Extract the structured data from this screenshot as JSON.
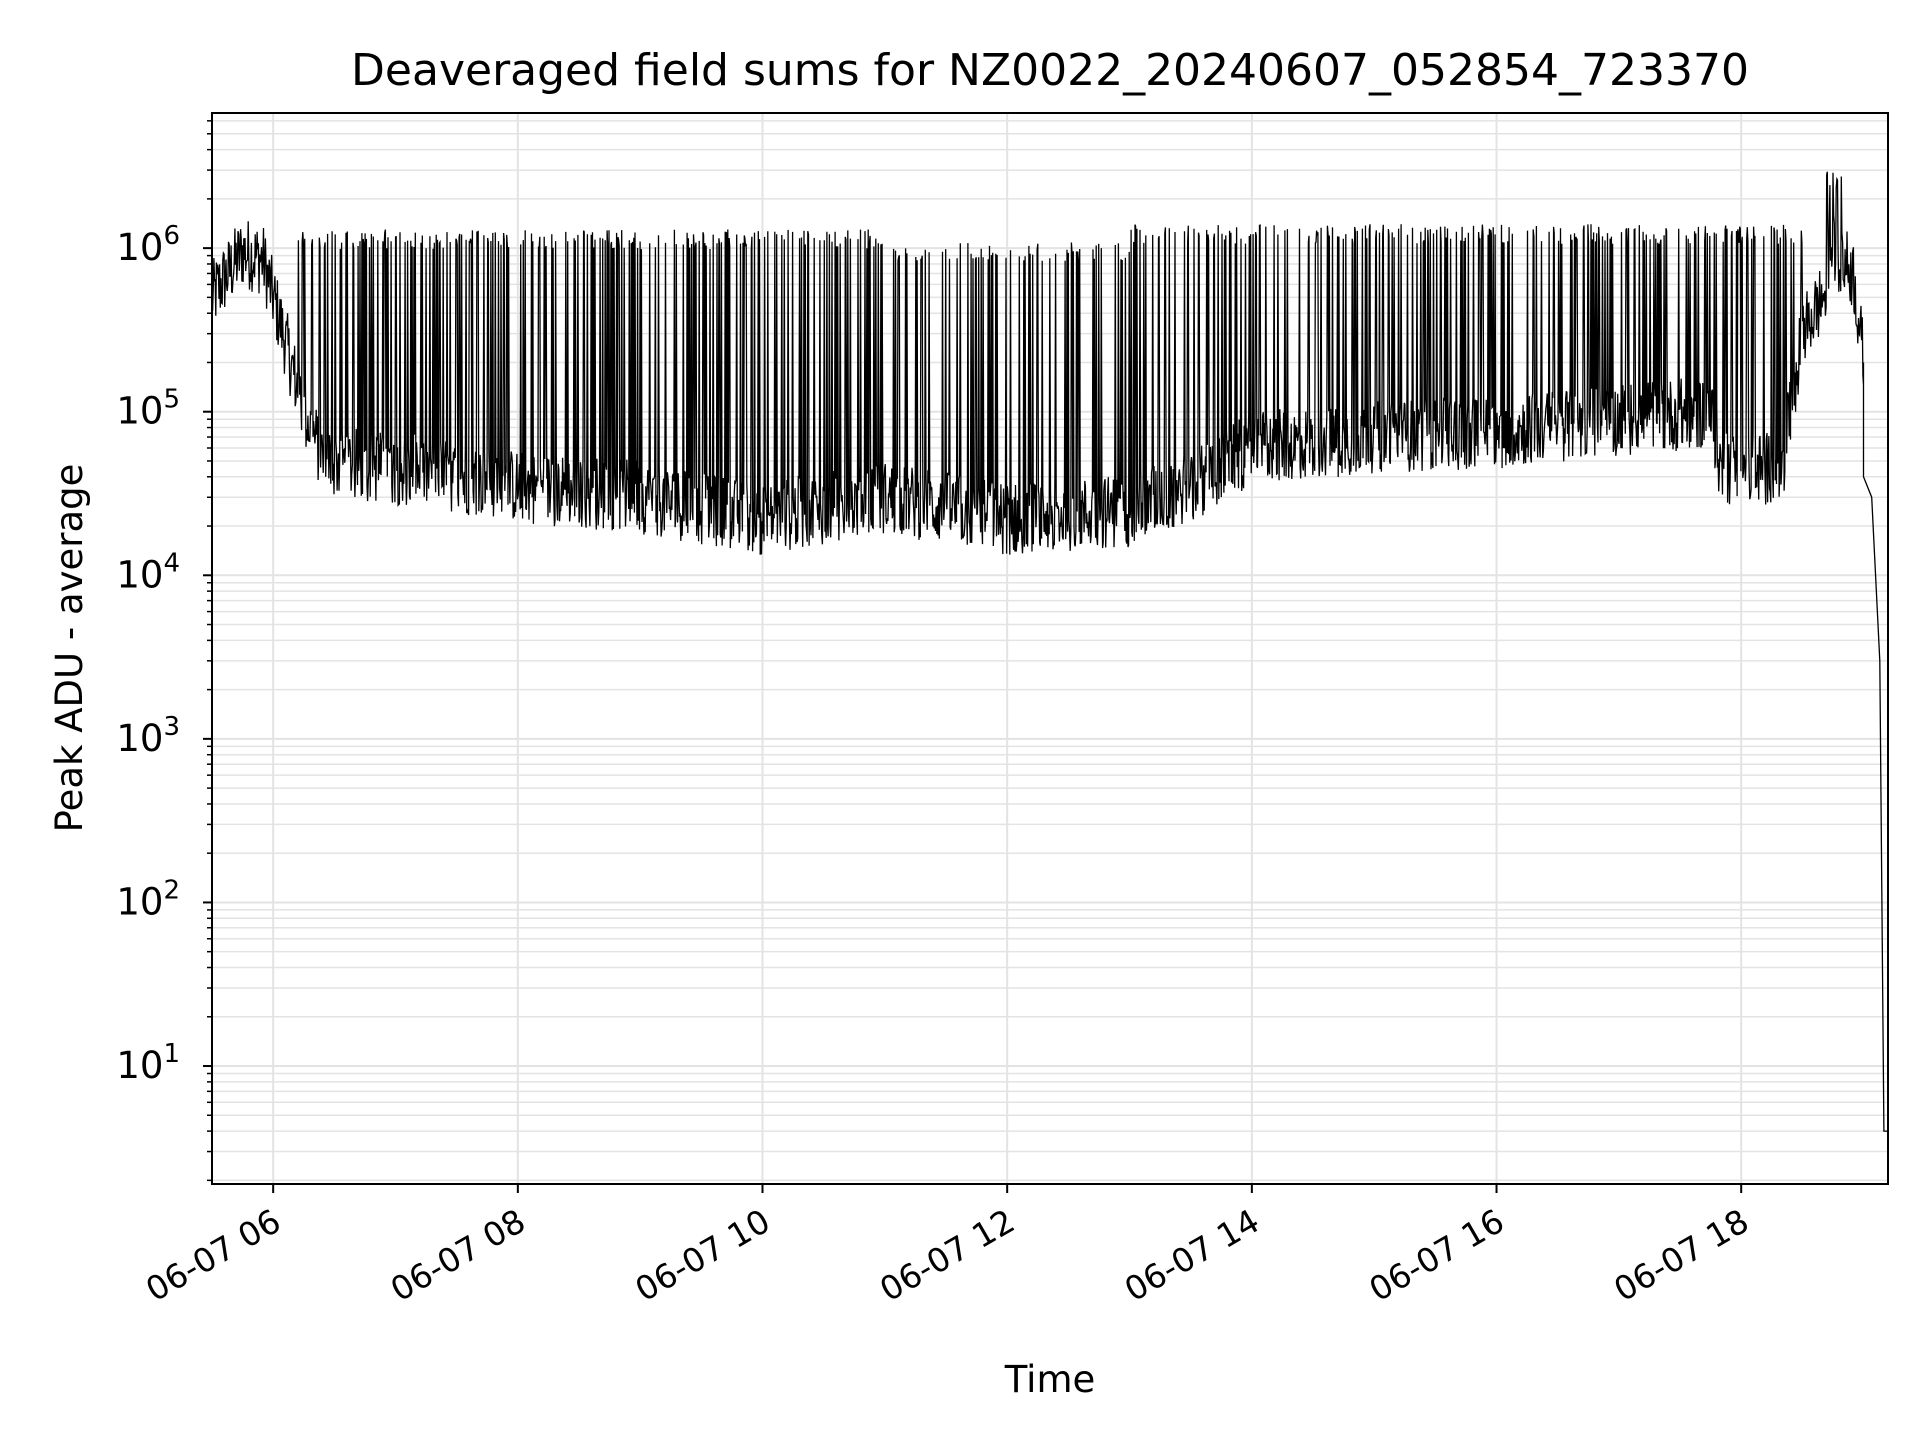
{
  "chart_data": {
    "type": "line",
    "title": "Deaveraged field sums for NZ0022_20240607_052854_723370",
    "xlabel": "Time",
    "ylabel": "Peak ADU - average",
    "y_scale": "log",
    "x_range": [
      "2024-06-07 05:30",
      "2024-06-07 19:12"
    ],
    "ylim": [
      1.9,
      6700000
    ],
    "x_ticks": [
      "06-07 06",
      "06-07 08",
      "06-07 10",
      "06-07 12",
      "06-07 14",
      "06-07 16",
      "06-07 18"
    ],
    "y_ticks": [
      {
        "base": "10",
        "exp": "1",
        "value": 10
      },
      {
        "base": "10",
        "exp": "2",
        "value": 100
      },
      {
        "base": "10",
        "exp": "3",
        "value": 1000
      },
      {
        "base": "10",
        "exp": "4",
        "value": 10000
      },
      {
        "base": "10",
        "exp": "5",
        "value": 100000
      },
      {
        "base": "10",
        "exp": "6",
        "value": 1000000
      }
    ],
    "grid": "on (major and minor)",
    "series": [
      {
        "color": "#000000",
        "baseline": [
          {
            "x": "2024-06-07 05:30",
            "y": 500000
          },
          {
            "x": "2024-06-07 05:45",
            "y": 950000
          },
          {
            "x": "2024-06-07 05:55",
            "y": 850000
          },
          {
            "x": "2024-06-07 06:05",
            "y": 300000
          },
          {
            "x": "2024-06-07 06:15",
            "y": 100000
          },
          {
            "x": "2024-06-07 06:25",
            "y": 50000
          },
          {
            "x": "2024-06-07 07:00",
            "y": 45000
          },
          {
            "x": "2024-06-07 08:00",
            "y": 35000
          },
          {
            "x": "2024-06-07 09:00",
            "y": 30000
          },
          {
            "x": "2024-06-07 10:00",
            "y": 22000
          },
          {
            "x": "2024-06-07 11:00",
            "y": 30000
          },
          {
            "x": "2024-06-07 12:00",
            "y": 22000
          },
          {
            "x": "2024-06-07 13:00",
            "y": 25000
          },
          {
            "x": "2024-06-07 13:30",
            "y": 35000
          },
          {
            "x": "2024-06-07 14:00",
            "y": 60000
          },
          {
            "x": "2024-06-07 15:00",
            "y": 70000
          },
          {
            "x": "2024-06-07 16:00",
            "y": 75000
          },
          {
            "x": "2024-06-07 17:00",
            "y": 90000
          },
          {
            "x": "2024-06-07 17:45",
            "y": 100000
          },
          {
            "x": "2024-06-07 17:50",
            "y": 45000
          },
          {
            "x": "2024-06-07 18:20",
            "y": 45000
          },
          {
            "x": "2024-06-07 18:30",
            "y": 300000
          },
          {
            "x": "2024-06-07 18:40",
            "y": 500000
          },
          {
            "x": "2024-06-07 18:45",
            "y": 1000000
          },
          {
            "x": "2024-06-07 18:55",
            "y": 700000
          },
          {
            "x": "2024-06-07 19:00",
            "y": 200000
          },
          {
            "x": "2024-06-07 19:00",
            "y": 40000
          },
          {
            "x": "2024-06-07 19:04",
            "y": 30000
          },
          {
            "x": "2024-06-07 19:08",
            "y": 3000
          },
          {
            "x": "2024-06-07 19:10",
            "y": 4
          },
          {
            "x": "2024-06-07 19:12",
            "y": 4
          }
        ],
        "spike_peaks": [
          {
            "x_start": "2024-06-07 06:10",
            "x_end": "2024-06-07 07:00",
            "y": 1300000
          },
          {
            "x_start": "2024-06-07 07:00",
            "x_end": "2024-06-07 10:00",
            "y": 1300000
          },
          {
            "x_start": "2024-06-07 10:00",
            "x_end": "2024-06-07 11:00",
            "y": 1300000
          },
          {
            "x_start": "2024-06-07 11:00",
            "x_end": "2024-06-07 13:00",
            "y": 1100000
          },
          {
            "x_start": "2024-06-07 13:00",
            "x_end": "2024-06-07 18:30",
            "y": 1400000
          },
          {
            "x_start": "2024-06-07 18:40",
            "x_end": "2024-06-07 18:50",
            "y": 3000000
          }
        ]
      }
    ]
  }
}
